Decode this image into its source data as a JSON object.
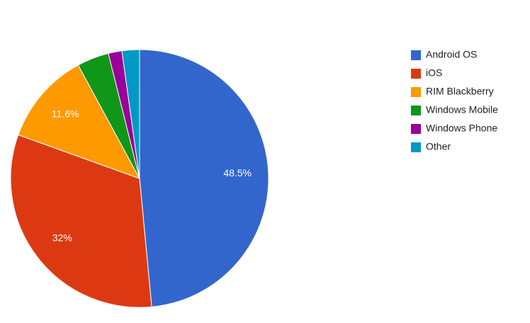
{
  "chart_data": {
    "type": "pie",
    "categories": [
      "Android OS",
      "iOS",
      "RIM Blackberry",
      "Windows Mobile",
      "Windows Phone",
      "Other"
    ],
    "values": [
      48.5,
      32,
      11.6,
      4,
      1.7,
      2.2
    ],
    "value_labels": [
      "48.5%",
      "32%",
      "11.6%",
      null,
      null,
      null
    ],
    "colors": [
      "#3366cc",
      "#dc3912",
      "#ff9900",
      "#109618",
      "#990099",
      "#0099c6"
    ],
    "legend": "right"
  }
}
